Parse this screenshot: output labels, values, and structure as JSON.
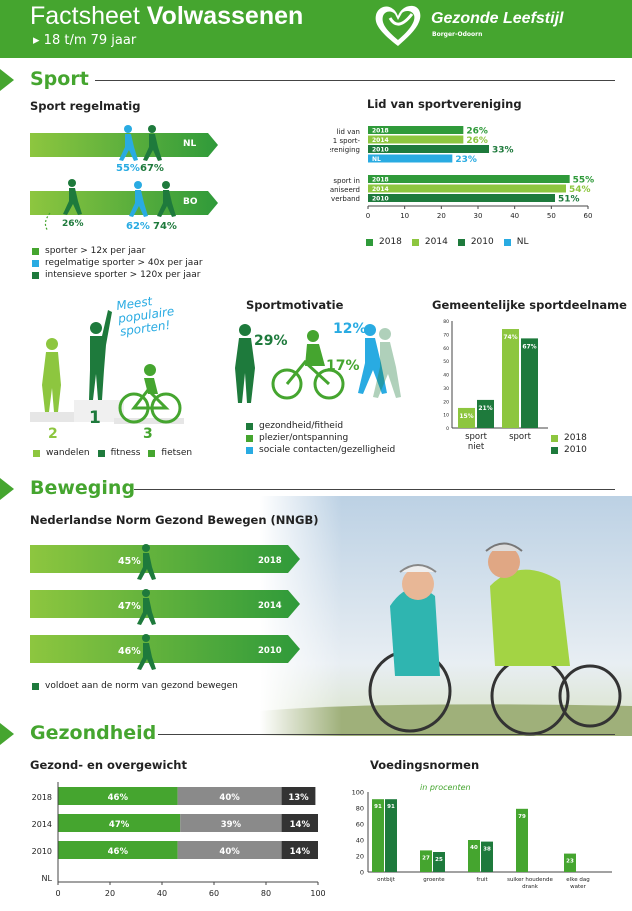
{
  "header": {
    "title_light": "Factsheet",
    "title_bold": "Volwassenen",
    "subtitle": "18 t/m 79 jaar",
    "logo_name": "Gezonde Leefstijl",
    "logo_sub": "Borger-Odoorn",
    "logo_icon": "heart-icon"
  },
  "colors": {
    "green": "#45a52f",
    "light_green": "#8dc63f",
    "dark_green": "#1e7a3c",
    "blue": "#29abe2",
    "gray": "#8a8a8a"
  },
  "sport": {
    "section_title": "Sport",
    "regelmatig": {
      "title": "Sport regelmatig",
      "nl_label": "NL",
      "bo_label": "BO",
      "nl_values": [
        "55%",
        "67%"
      ],
      "bo_values": [
        "26%",
        "62%",
        "74%"
      ],
      "legend": [
        "sporter > 12x per jaar",
        "regelmatige sporter > 40x per jaar",
        "intensieve sporter > 120x per jaar"
      ]
    },
    "vereniging": {
      "title": "Lid van sportvereniging",
      "groups": [
        {
          "label_lines": [
            "lid van",
            "1 sport-",
            "vereniging"
          ],
          "bars": [
            {
              "year": "2018",
              "value": 26,
              "label": "26%"
            },
            {
              "year": "2014",
              "value": 26,
              "label": "26%"
            },
            {
              "year": "2010",
              "value": 33,
              "label": "33%"
            },
            {
              "year": "NL",
              "value": 23,
              "label": "23%"
            }
          ]
        },
        {
          "label_lines": [
            "sport in",
            "ongeorganiseerd",
            "verband"
          ],
          "bars": [
            {
              "year": "2018",
              "value": 55,
              "label": "55%"
            },
            {
              "year": "2014",
              "value": 54,
              "label": "54%"
            },
            {
              "year": "2010",
              "value": 51,
              "label": "51%"
            }
          ]
        }
      ],
      "ticks": [
        "0",
        "10",
        "20",
        "30",
        "40",
        "50",
        "60"
      ],
      "xmax": 60,
      "legend": [
        "2018",
        "2014",
        "2010",
        "NL"
      ]
    },
    "populair": {
      "handwritten": [
        "Meest",
        "populaire",
        "sporten!"
      ],
      "ranks": [
        "2",
        "1",
        "3"
      ],
      "legend": [
        "wandelen",
        "fitness",
        "fietsen"
      ]
    },
    "motivatie": {
      "title": "Sportmotivatie",
      "values": [
        "29%",
        "17%",
        "12%"
      ],
      "legend": [
        "gezondheid/fitheid",
        "plezier/ontspanning",
        "sociale contacten/gezelligheid"
      ]
    },
    "gemeentelijk": {
      "title": "Gemeentelijke sportdeelname",
      "ticks": [
        "0",
        "10",
        "20",
        "30",
        "40",
        "50",
        "60",
        "70",
        "80"
      ],
      "categories": [
        "sport niet",
        "sport"
      ],
      "cat_lines": [
        [
          "sport",
          "niet"
        ],
        [
          "sport"
        ]
      ],
      "series": [
        {
          "name": "2018",
          "values": [
            15,
            74
          ],
          "labels": [
            "15%",
            "74%"
          ]
        },
        {
          "name": "2010",
          "values": [
            21,
            67
          ],
          "labels": [
            "21%",
            "67%"
          ]
        }
      ],
      "legend": [
        "2018",
        "2010"
      ]
    }
  },
  "beweging": {
    "section_title": "Beweging",
    "title": "Nederlandse Norm Gezond Bewegen (NNGB)",
    "rows": [
      {
        "pct": "45%",
        "year": "2018"
      },
      {
        "pct": "47%",
        "year": "2014"
      },
      {
        "pct": "46%",
        "year": "2010"
      }
    ],
    "legend": "voldoet aan de norm van gezond bewegen"
  },
  "gezondheid": {
    "section_title": "Gezondheid",
    "overgewicht": {
      "title": "Gezond- en overgewicht",
      "rows": [
        {
          "year": "2018",
          "segments": [
            46,
            40,
            13
          ],
          "labels": [
            "46%",
            "40%",
            "13%"
          ]
        },
        {
          "year": "2014",
          "segments": [
            47,
            39,
            14
          ],
          "labels": [
            "47%",
            "39%",
            "14%"
          ]
        },
        {
          "year": "2010",
          "segments": [
            46,
            40,
            14
          ],
          "labels": [
            "46%",
            "40%",
            "14%"
          ]
        },
        {
          "year": "NL",
          "segments": [],
          "labels": []
        }
      ],
      "ticks": [
        "0",
        "20",
        "40",
        "60",
        "80",
        "100"
      ]
    },
    "voeding": {
      "title": "Voedingsnormen",
      "note": "in procenten",
      "ticks": [
        "0",
        "20",
        "40",
        "60",
        "80",
        "100"
      ],
      "categories": [
        "ontbijt",
        "groente",
        "fruit",
        "suiker houdende drank",
        "elke dag water"
      ],
      "cat_lines": [
        [
          "ontbijt"
        ],
        [
          "groente"
        ],
        [
          "fruit"
        ],
        [
          "suiker houdende",
          "drank"
        ],
        [
          "elke dag",
          "water"
        ]
      ],
      "series": [
        {
          "values": [
            91,
            27,
            40,
            79,
            23
          ],
          "labels": [
            "91",
            "27",
            "40",
            "79",
            "23"
          ]
        },
        {
          "values": [
            91,
            25,
            38,
            null,
            null
          ],
          "labels": [
            "91",
            "25",
            "38",
            "",
            ""
          ]
        }
      ]
    }
  }
}
